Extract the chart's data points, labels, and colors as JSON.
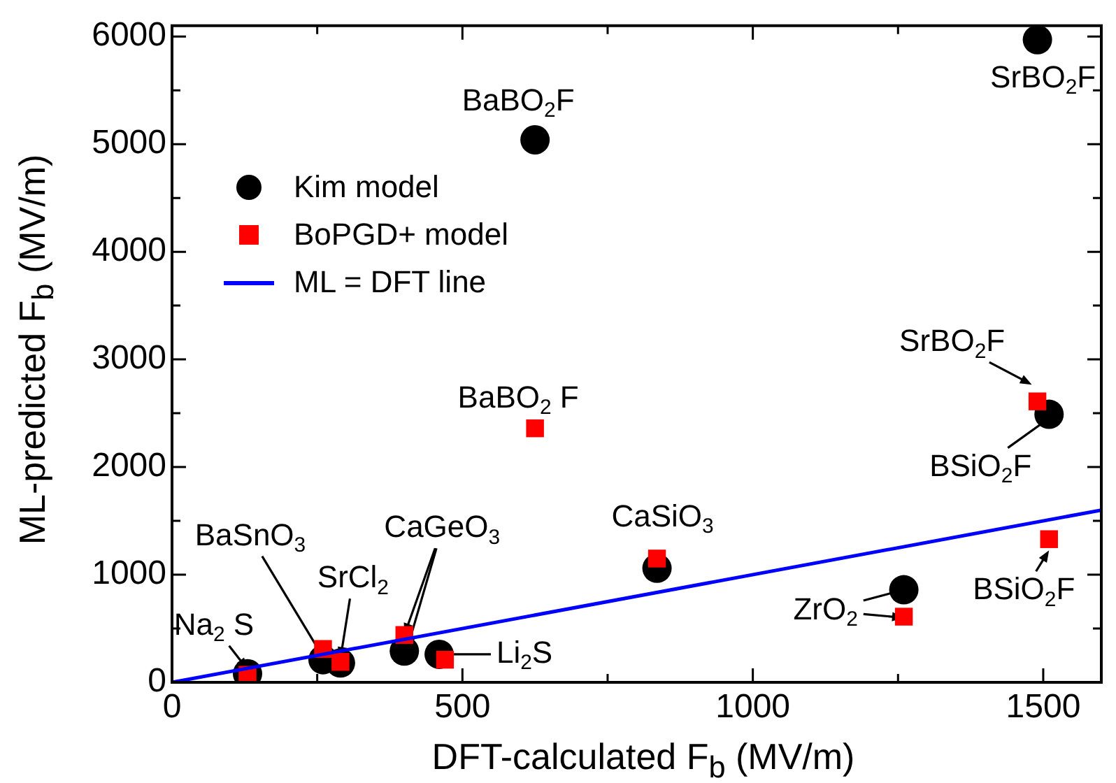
{
  "chart_data": {
    "type": "scatter",
    "xlabel": "DFT-calculated F$_{b}$ (MV/m)",
    "ylabel": "ML-predicted F$_{b}$ (MV/m)",
    "xlim": [
      0,
      1600
    ],
    "ylim": [
      0,
      6100
    ],
    "xticks": [
      0,
      {
        "value": 250,
        "label": null
      },
      500,
      {
        "value": 750,
        "label": null
      },
      1000,
      {
        "value": 1250,
        "label": null
      },
      1500
    ],
    "yticks": [
      0,
      {
        "value": 500,
        "label": null
      },
      1000,
      {
        "value": 1500,
        "label": null
      },
      2000,
      {
        "value": 2500,
        "label": null
      },
      3000,
      {
        "value": 3500,
        "label": null
      },
      4000,
      {
        "value": 4500,
        "label": null
      },
      5000,
      {
        "value": 5500,
        "label": null
      },
      6000
    ],
    "grid": false,
    "legend": "top left",
    "series": [
      {
        "name": "Kim model",
        "marker": "circle",
        "color": "#000000",
        "x": [
          625,
          1490,
          1510,
          835,
          1260,
          400,
          290,
          260,
          130,
          460
        ],
        "values": [
          5040,
          5970,
          2490,
          1060,
          860,
          290,
          180,
          210,
          80,
          260
        ]
      },
      {
        "name": "BoPGD+ model",
        "marker": "square",
        "color": "#ff0000",
        "x": [
          625,
          1490,
          1510,
          835,
          1260,
          400,
          290,
          260,
          130,
          470
        ],
        "values": [
          2360,
          2610,
          1330,
          1150,
          610,
          440,
          190,
          310,
          70,
          210
        ]
      },
      {
        "name": "ML = DFT line",
        "type": "line",
        "marker": "none",
        "line_style": "solid",
        "color": "#0000ff",
        "x": [
          0,
          1600
        ],
        "values": [
          0,
          1600
        ]
      }
    ],
    "annotations": [
      {
        "text": "BaBO$_{2}$F",
        "x": 625,
        "y": 5040
      },
      {
        "text": "SrBO$_{2}$F",
        "x": 1490,
        "y": 5970
      },
      {
        "text": "BaBO$_{2}$ F",
        "x": 625,
        "y": 2360
      },
      {
        "text": "SrBO$_{2}$F",
        "x": 1490,
        "y": 2610
      },
      {
        "text": "BSiO$_{2}$F",
        "x": 1510,
        "y": 2490
      },
      {
        "text": "CaSiO$_{3}$",
        "x": 835,
        "y": 1150
      },
      {
        "text": "BSiO$_{2}$F",
        "x": 1510,
        "y": 1330
      },
      {
        "text": "ZrO$_{2}$",
        "x": 1260,
        "y": 860
      },
      {
        "text": "CaGeO$_{3}$",
        "x": 400,
        "y": 440
      },
      {
        "text": "SrCl$_{2}$",
        "x": 290,
        "y": 180
      },
      {
        "text": "BaSnO$_{3}$",
        "x": 260,
        "y": 210
      },
      {
        "text": "Na$_{2}$ S",
        "x": 130,
        "y": 80
      },
      {
        "text": "Li$_{2}$S",
        "x": 460,
        "y": 260
      }
    ]
  }
}
